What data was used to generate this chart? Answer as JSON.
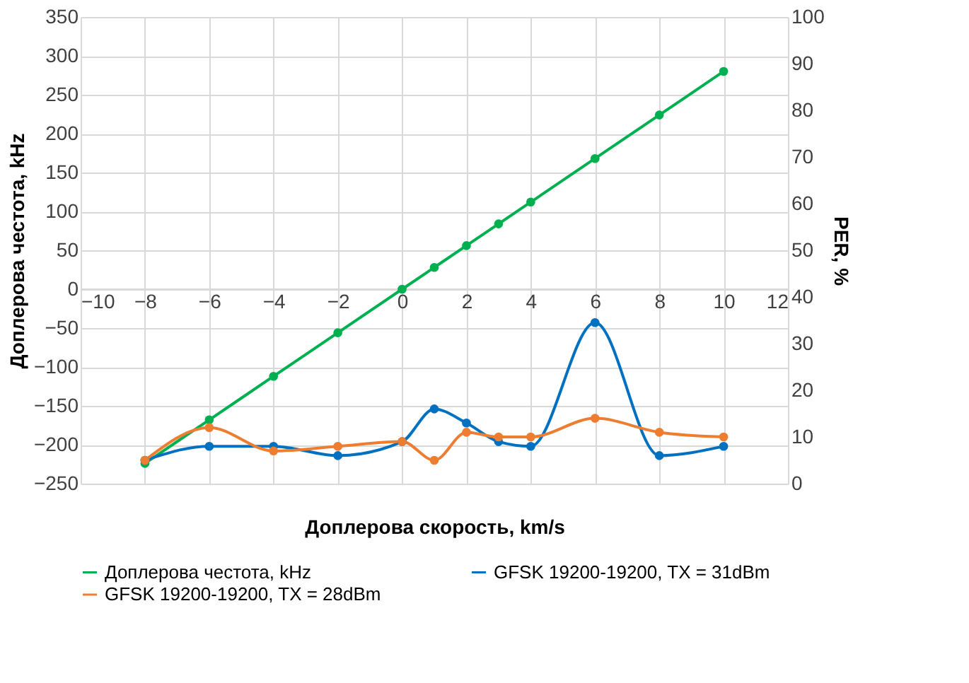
{
  "chart_data": {
    "type": "line",
    "x": [
      -8,
      -6,
      -4,
      -2,
      0,
      1,
      2,
      3,
      4,
      6,
      8,
      10
    ],
    "series": [
      {
        "name": "Доплерова честота, kHz",
        "color": "#00b050",
        "values": [
          -224,
          -168,
          -112,
          -56,
          0,
          28,
          56,
          84,
          112,
          168,
          224,
          280
        ]
      },
      {
        "name": "GFSK 19200-19200, TX = 31dBm",
        "color": "#0070c0",
        "axis": "y2",
        "values": [
          5,
          8,
          8,
          6,
          9,
          16,
          13,
          9,
          8,
          34.5,
          6,
          8
        ]
      },
      {
        "name": "GFSK 19200-19200, TX = 28dBm",
        "color": "#ed7d31",
        "axis": "y2",
        "values": [
          5,
          12,
          7,
          8,
          9,
          5,
          11,
          10,
          10,
          14,
          11,
          10
        ]
      }
    ],
    "xlabel": "Доплерова скорость, km/s",
    "ylabel": "Доплерова честота, kHz",
    "y2label": "PER, %",
    "xlim": [
      -10,
      12
    ],
    "xticks": [
      -10,
      -8,
      -6,
      -4,
      -2,
      0,
      2,
      4,
      6,
      8,
      10,
      12
    ],
    "ylim": [
      -250,
      350
    ],
    "yticks": [
      -250,
      -200,
      -150,
      -100,
      -50,
      0,
      50,
      100,
      150,
      200,
      250,
      300,
      350
    ],
    "y2lim": [
      0,
      100
    ],
    "y2ticks": [
      0,
      10,
      20,
      30,
      40,
      50,
      60,
      70,
      80,
      90,
      100
    ],
    "grid": true,
    "legend": "bottom",
    "marker": "circle",
    "line_style": "solid"
  }
}
